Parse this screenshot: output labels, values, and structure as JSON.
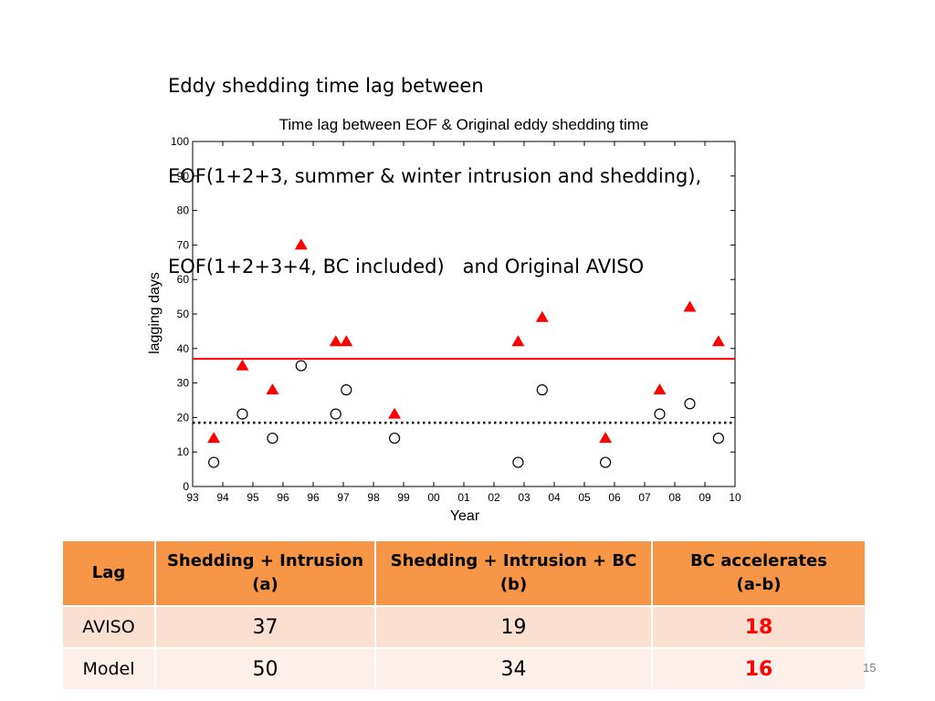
{
  "slide": {
    "title_lines": [
      "Eddy shedding time lag between",
      "EOF(1+2+3, summer & winter intrusion and shedding),",
      "EOF(1+2+3+4, BC included)   and Original AVISO"
    ],
    "page_number": "15"
  },
  "chart_data": {
    "type": "scatter",
    "title": "Time lag between EOF & Original eddy shedding time",
    "xlabel": "Year",
    "ylabel": "lagging days",
    "ylim": [
      0,
      100
    ],
    "xlim": [
      0,
      18
    ],
    "y_ticks": [
      0,
      10,
      20,
      30,
      40,
      50,
      60,
      70,
      80,
      90,
      100
    ],
    "x_tick_labels": [
      "93",
      "94",
      "95",
      "96",
      "96",
      "97",
      "98",
      "99",
      "00",
      "01",
      "02",
      "03",
      "04",
      "05",
      "06",
      "07",
      "08",
      "09",
      "10"
    ],
    "grid": false,
    "series": [
      {
        "marker": "filled-triangle",
        "color": "#ff0000",
        "x": [
          0.7,
          1.65,
          2.65,
          3.6,
          4.75,
          5.1,
          6.7,
          10.8,
          11.6,
          13.7,
          15.5,
          16.5,
          17.45
        ],
        "y": [
          14,
          35,
          28,
          70,
          42,
          42,
          21,
          42,
          49,
          14,
          28,
          52,
          42
        ]
      },
      {
        "marker": "open-circle",
        "color": "#000000",
        "x": [
          0.7,
          1.65,
          2.65,
          3.6,
          4.75,
          5.1,
          6.7,
          10.8,
          11.6,
          13.7,
          15.5,
          16.5,
          17.45
        ],
        "y": [
          7,
          21,
          14,
          35,
          21,
          28,
          14,
          7,
          28,
          7,
          21,
          24,
          14
        ]
      }
    ],
    "reference_lines": [
      {
        "y": 37,
        "style": "solid",
        "color": "#ff0000"
      },
      {
        "y": 18.5,
        "style": "dotted",
        "color": "#000000"
      }
    ]
  },
  "table": {
    "headers": [
      [
        "Lag"
      ],
      [
        "Shedding + Intrusion",
        "(a)"
      ],
      [
        "Shedding + Intrusion + BC",
        "(b)"
      ],
      [
        "BC accelerates",
        "(a-b)"
      ]
    ],
    "rows": [
      {
        "label": "AVISO",
        "a": "37",
        "b": "19",
        "diff": "18"
      },
      {
        "label": "Model",
        "a": "50",
        "b": "34",
        "diff": "16"
      }
    ],
    "header_color": "#f79646",
    "accent_color": "#ff0000"
  }
}
